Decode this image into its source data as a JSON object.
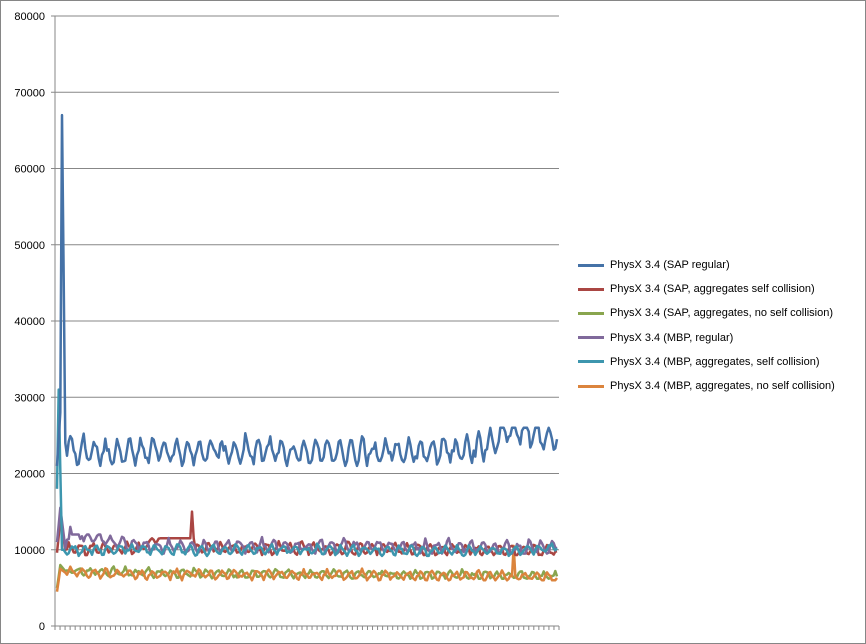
{
  "chart_data": {
    "type": "line",
    "title": "",
    "xlabel": "",
    "ylabel": "",
    "ylim": [
      0,
      80000
    ],
    "yticks": [
      "0",
      "10000",
      "20000",
      "30000",
      "40000",
      "50000",
      "60000",
      "70000",
      "80000"
    ],
    "grid": true,
    "legend_position": "right",
    "x_points": 300,
    "series": [
      {
        "name": "PhysX 3.4 (SAP regular)",
        "color": "#4572A7",
        "key_points": [
          [
            0,
            21000
          ],
          [
            2,
            28000
          ],
          [
            3,
            67000
          ],
          [
            5,
            24000
          ],
          [
            10,
            23000
          ],
          [
            30,
            23000
          ],
          [
            60,
            22800
          ],
          [
            100,
            23000
          ],
          [
            150,
            22800
          ],
          [
            200,
            22800
          ],
          [
            250,
            23000
          ],
          [
            275,
            26000
          ],
          [
            300,
            24500
          ]
        ],
        "typical_range": [
          21000,
          26000
        ]
      },
      {
        "name": "PhysX 3.4 (SAP, aggregates self collision)",
        "color": "#AA4643",
        "key_points": [
          [
            0,
            9600
          ],
          [
            2,
            14000
          ],
          [
            5,
            10000
          ],
          [
            50,
            10200
          ],
          [
            81,
            15000
          ],
          [
            83,
            10200
          ],
          [
            150,
            10200
          ],
          [
            250,
            10000
          ],
          [
            300,
            9800
          ]
        ],
        "typical_range": [
          9300,
          11500
        ]
      },
      {
        "name": "PhysX 3.4 (SAP, aggregates, no self collision)",
        "color": "#89A54E",
        "key_points": [
          [
            0,
            5000
          ],
          [
            2,
            8000
          ],
          [
            5,
            7200
          ],
          [
            50,
            7000
          ],
          [
            150,
            6800
          ],
          [
            250,
            6700
          ],
          [
            300,
            6500
          ]
        ],
        "typical_range": [
          6200,
          7800
        ]
      },
      {
        "name": "PhysX 3.4 (MBP, regular)",
        "color": "#80699B",
        "key_points": [
          [
            0,
            11000
          ],
          [
            2,
            15500
          ],
          [
            5,
            10200
          ],
          [
            8,
            13000
          ],
          [
            12,
            12000
          ],
          [
            50,
            10400
          ],
          [
            150,
            10500
          ],
          [
            250,
            10300
          ],
          [
            300,
            10200
          ]
        ],
        "typical_range": [
          9500,
          12000
        ]
      },
      {
        "name": "PhysX 3.4 (MBP, aggregates, self collision)",
        "color": "#3D96AE",
        "key_points": [
          [
            0,
            18000
          ],
          [
            1,
            31000
          ],
          [
            3,
            10000
          ],
          [
            50,
            10000
          ],
          [
            150,
            10000
          ],
          [
            250,
            9800
          ],
          [
            300,
            10200
          ]
        ],
        "typical_range": [
          9200,
          11000
        ]
      },
      {
        "name": "PhysX 3.4 (MBP, aggregates, no self collision)",
        "color": "#DB843D",
        "key_points": [
          [
            0,
            4500
          ],
          [
            2,
            7500
          ],
          [
            5,
            7000
          ],
          [
            50,
            6800
          ],
          [
            150,
            6700
          ],
          [
            273,
            6500
          ],
          [
            274,
            10500
          ],
          [
            275,
            6600
          ],
          [
            300,
            6300
          ]
        ],
        "typical_range": [
          6000,
          7800
        ]
      }
    ]
  }
}
